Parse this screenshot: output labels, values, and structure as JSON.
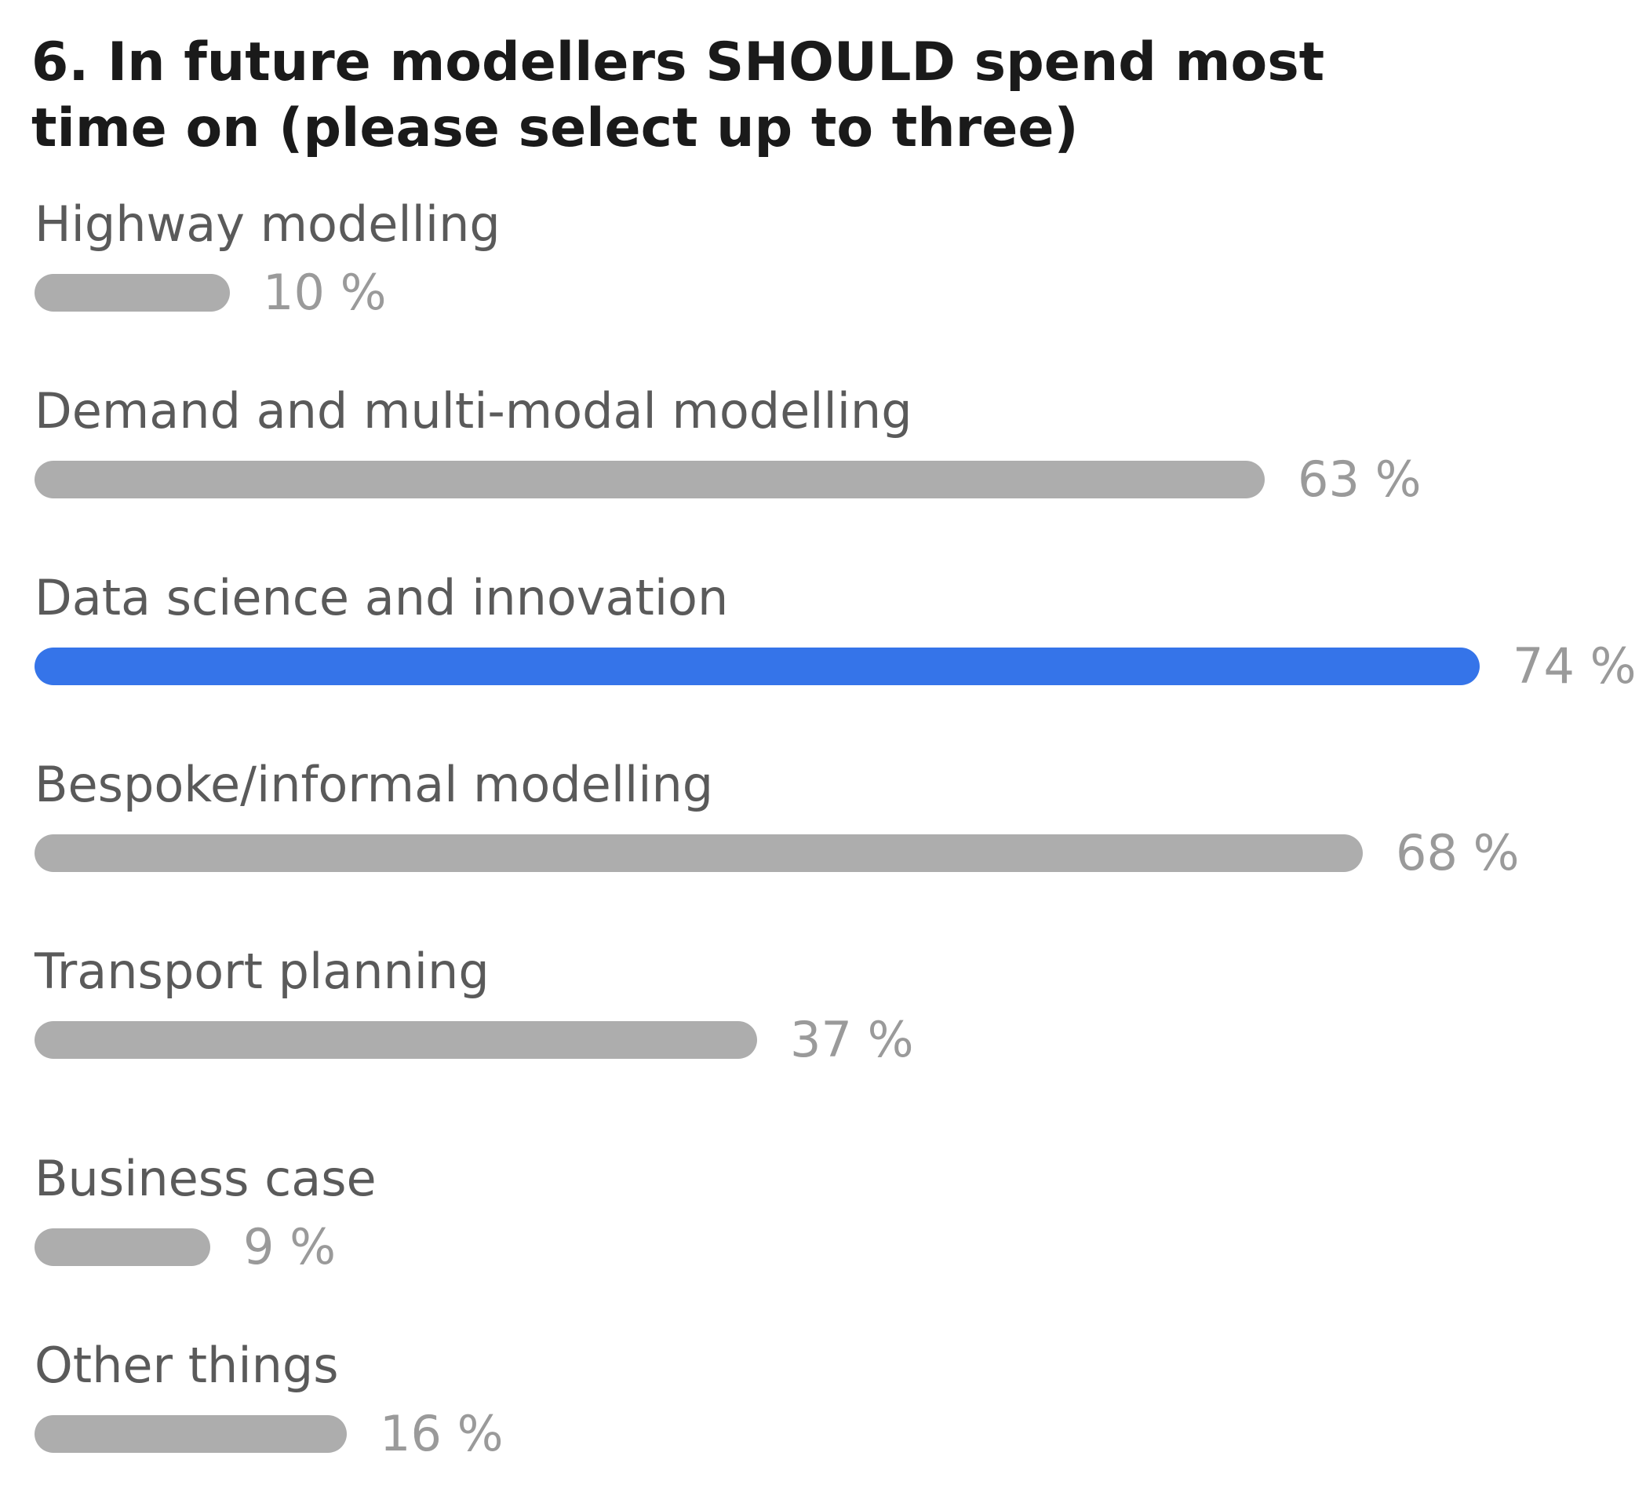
{
  "chart_data": {
    "type": "bar",
    "orientation": "horizontal",
    "title": "6. In future modellers SHOULD spend most time on (please select up to three)",
    "categories": [
      "Highway modelling",
      "Demand and multi-modal modelling",
      "Data science and innovation",
      "Bespoke/informal modelling",
      "Transport planning",
      "Business case",
      "Other things"
    ],
    "values": [
      10,
      63,
      74,
      68,
      37,
      9,
      16
    ],
    "value_labels": [
      "10 %",
      "63 %",
      "74 %",
      "68 %",
      "37 %",
      "9 %",
      "16 %"
    ],
    "unit": "%",
    "highlight_index": 2,
    "colors": {
      "bar": "#adadad",
      "highlight": "#3574e9",
      "label": "#5a5a5a",
      "value": "#9a9a9a",
      "title": "#1a1a1a"
    },
    "grid": false,
    "legend": "none"
  }
}
